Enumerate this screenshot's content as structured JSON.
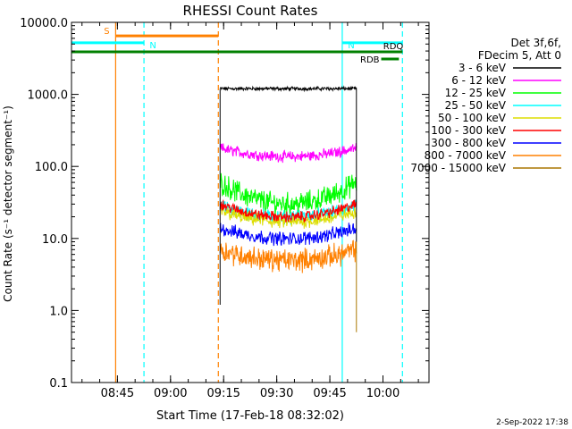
{
  "chart_data": {
    "type": "line",
    "title": "RHESSI Count Rates",
    "xlabel": "Start Time (17-Feb-18 08:32:02)",
    "ylabel": "Count Rate (s⁻¹ detector segment⁻¹)",
    "y_scale": "log",
    "ylim": [
      0.1,
      10000
    ],
    "xlim": [
      "08:32:02",
      "10:13:00"
    ],
    "y_tick_labels": [
      "0.1",
      "1.0",
      "10.0",
      "100.0",
      "1000.0",
      "10000.0"
    ],
    "x_tick_labels": [
      "08:45",
      "09:00",
      "09:15",
      "09:30",
      "09:45",
      "10:00"
    ],
    "legend_header": [
      "Det 3f,6f,",
      "FDecim 5, Att 0"
    ],
    "legend_position": "right",
    "data_interval": [
      "09:14:00",
      "09:52:30"
    ],
    "series": [
      {
        "name": "3 - 6 keV",
        "color": "#000000",
        "level": 1200,
        "noise": 0.04,
        "curve": 0.0
      },
      {
        "name": "6 - 12 keV",
        "color": "#ff00ff",
        "level": 180,
        "noise": 0.12,
        "curve": 0.12
      },
      {
        "name": "12 - 25 keV",
        "color": "#00ff00",
        "level": 60,
        "noise": 0.25,
        "curve": 0.3
      },
      {
        "name": "25 - 50 keV",
        "color": "#00ffff",
        "level": 28,
        "noise": 0.15,
        "curve": 0.15
      },
      {
        "name": "50 - 100 keV",
        "color": "#dddd00",
        "level": 24,
        "noise": 0.15,
        "curve": 0.15
      },
      {
        "name": "100 - 300 keV",
        "color": "#ff0000",
        "level": 30,
        "noise": 0.12,
        "curve": 0.18
      },
      {
        "name": "300 - 800 keV",
        "color": "#0000ff",
        "level": 14,
        "noise": 0.15,
        "curve": 0.15
      },
      {
        "name": "800 - 7000 keV",
        "color": "#ff8000",
        "level": 7,
        "noise": 0.25,
        "curve": 0.15
      },
      {
        "name": "7000 - 15000 keV",
        "color": "#aa7700",
        "level": 0.5,
        "noise": 0.0,
        "curve": 0.0
      }
    ],
    "flag_bars": [
      {
        "label": "S",
        "color": "#ff8000",
        "start": "08:44:30",
        "end": "09:13:30",
        "level": 6500
      },
      {
        "label": "N",
        "color": "#00ffff",
        "start": "08:32:02",
        "end": "08:52:30",
        "level": 5200
      },
      {
        "label": "N",
        "color": "#00ffff",
        "start": "09:48:30",
        "end": "10:05:30",
        "level": 5200
      },
      {
        "label": "",
        "color": "#008000",
        "start": "08:32:02",
        "end": "10:05:30",
        "level": 3900
      },
      {
        "label": "RDQ",
        "color": "#008000",
        "start": "10:00:30",
        "end": "10:05:30",
        "level": 3900
      },
      {
        "label": "RDB",
        "color": "#008000",
        "start": "09:59:30",
        "end": "10:04:30",
        "level": 3100
      }
    ],
    "vertical_lines": [
      {
        "time": "08:44:30",
        "color": "#ff8000",
        "style": "solid"
      },
      {
        "time": "08:52:30",
        "color": "#00ffff",
        "style": "dashed"
      },
      {
        "time": "09:13:30",
        "color": "#ff8000",
        "style": "dashed"
      },
      {
        "time": "09:48:30",
        "color": "#00ffff",
        "style": "solid"
      },
      {
        "time": "10:05:30",
        "color": "#00ffff",
        "style": "dashed"
      }
    ]
  },
  "footer_timestamp": "2-Sep-2022 17:38"
}
